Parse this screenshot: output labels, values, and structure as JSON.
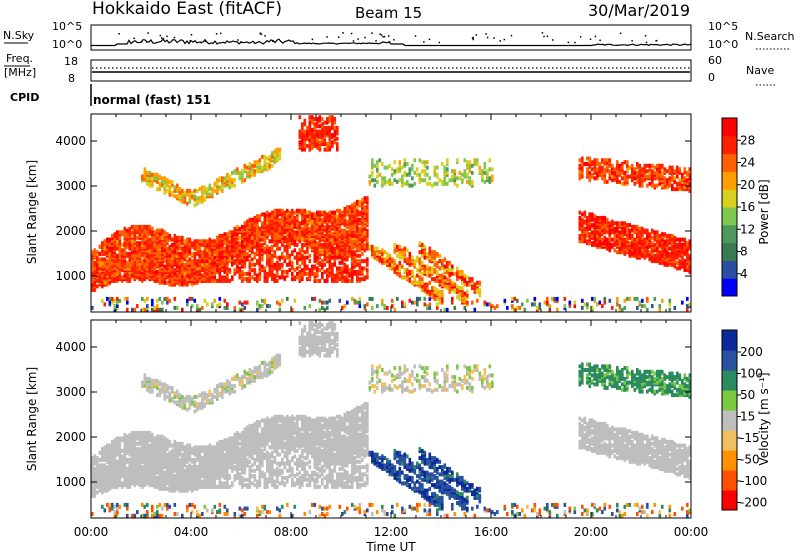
{
  "header": {
    "station": "Hokkaido East (fitACF)",
    "beam": "Beam 15",
    "date": "30/Mar/2019"
  },
  "top_panels": {
    "nsky_label": "N.Sky",
    "nsearch_label": "N.Search",
    "nsky_ticks": [
      "10^5",
      "10^0"
    ],
    "nsearch_ticks": [
      "10^5",
      "10^0"
    ],
    "freq_label": "Freq.",
    "freq_unit": "[MHz]",
    "freq_ticks": [
      "18",
      "8"
    ],
    "nave_label": "Nave",
    "nave_ticks": [
      "60",
      "0"
    ],
    "cpid_label": "CPID",
    "cpid_text": "normal (fast) 151"
  },
  "chart_data": [
    {
      "type": "heatmap",
      "title": "",
      "xlabel": "",
      "ylabel": "Slant Range [km]",
      "xlim": [
        0,
        24
      ],
      "ylim": [
        200,
        4600
      ],
      "yticks": [
        "1000",
        "2000",
        "3000",
        "4000"
      ],
      "colorbar": {
        "label": "Power [dB]",
        "ticks": [
          "28",
          "24",
          "20",
          "16",
          "12",
          "8",
          "4"
        ],
        "range": [
          0,
          32
        ]
      },
      "regions": [
        {
          "t": [
            0.0,
            11.0
          ],
          "range": [
            900,
            2800
          ],
          "power": 27,
          "desc": "rising red band"
        },
        {
          "t": [
            2.0,
            7.5
          ],
          "range": [
            2500,
            3800
          ],
          "power": 19
        },
        {
          "t": [
            8.3,
            9.7
          ],
          "range": [
            3700,
            4500
          ],
          "power": 24
        },
        {
          "t": [
            11.0,
            15.5
          ],
          "range": [
            600,
            1700
          ],
          "power": 22
        },
        {
          "t": [
            11.0,
            16.0
          ],
          "range": [
            3000,
            3600
          ],
          "power": 14
        },
        {
          "t": [
            19.5,
            24.0
          ],
          "range": [
            1100,
            2400
          ],
          "power": 27
        },
        {
          "t": [
            19.5,
            24.0
          ],
          "range": [
            3000,
            4000
          ],
          "power": 25
        }
      ]
    },
    {
      "type": "heatmap",
      "title": "",
      "xlabel": "Time UT",
      "ylabel": "Slant Range [km]",
      "xlim": [
        0,
        24
      ],
      "ylim": [
        200,
        4600
      ],
      "xticks": [
        "00:00",
        "04:00",
        "08:00",
        "12:00",
        "16:00",
        "20:00",
        "00:00"
      ],
      "yticks": [
        "1000",
        "2000",
        "3000",
        "4000"
      ],
      "colorbar": {
        "label": "Velocity [m s⁻¹]",
        "ticks": [
          "200",
          "100",
          "50",
          "15",
          "-15",
          "-50",
          "-100",
          "-200"
        ],
        "range": [
          -250,
          250
        ]
      },
      "regions": [
        {
          "t": [
            0.0,
            11.0
          ],
          "range": [
            900,
            2800
          ],
          "velocity": 0
        },
        {
          "t": [
            11.0,
            14.0
          ],
          "range": [
            600,
            1700
          ],
          "velocity": 120
        },
        {
          "t": [
            19.5,
            24.0
          ],
          "range": [
            1100,
            2400
          ],
          "velocity": 0
        },
        {
          "t": [
            19.5,
            24.0
          ],
          "range": [
            3000,
            4000
          ],
          "velocity": 40
        }
      ]
    }
  ],
  "colors": {
    "power_scale": [
      "#0000ff",
      "#2a4fa0",
      "#3a7a50",
      "#4e9a5e",
      "#7ec850",
      "#d8d020",
      "#ffa000",
      "#ff6000",
      "#ff2000",
      "#ff0000"
    ],
    "velocity_scale": [
      "#0a2a9a",
      "#2a50a0",
      "#2a8a60",
      "#7ac840",
      "#bebebe",
      "#f0c060",
      "#ff9000",
      "#ff5000",
      "#ff0000"
    ]
  }
}
